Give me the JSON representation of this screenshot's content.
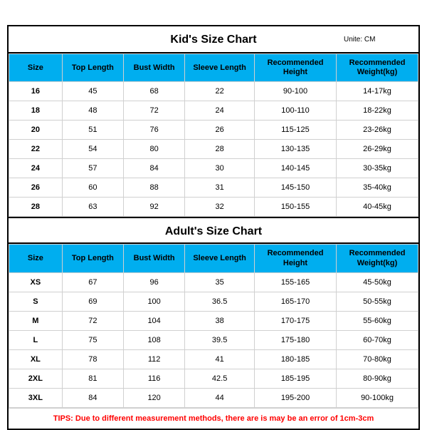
{
  "unit_label": "Unite: CM",
  "headers": [
    "Size",
    "Top Length",
    "Bust Width",
    "Sleeve Length",
    "Recommended Height",
    "Recommended Weight(kg)"
  ],
  "kids": {
    "title": "Kid's Size Chart",
    "rows": [
      [
        "16",
        "45",
        "68",
        "22",
        "90-100",
        "14-17kg"
      ],
      [
        "18",
        "48",
        "72",
        "24",
        "100-110",
        "18-22kg"
      ],
      [
        "20",
        "51",
        "76",
        "26",
        "115-125",
        "23-26kg"
      ],
      [
        "22",
        "54",
        "80",
        "28",
        "130-135",
        "26-29kg"
      ],
      [
        "24",
        "57",
        "84",
        "30",
        "140-145",
        "30-35kg"
      ],
      [
        "26",
        "60",
        "88",
        "31",
        "145-150",
        "35-40kg"
      ],
      [
        "28",
        "63",
        "92",
        "32",
        "150-155",
        "40-45kg"
      ]
    ]
  },
  "adults": {
    "title": "Adult's Size Chart",
    "rows": [
      [
        "XS",
        "67",
        "96",
        "35",
        "155-165",
        "45-50kg"
      ],
      [
        "S",
        "69",
        "100",
        "36.5",
        "165-170",
        "50-55kg"
      ],
      [
        "M",
        "72",
        "104",
        "38",
        "170-175",
        "55-60kg"
      ],
      [
        "L",
        "75",
        "108",
        "39.5",
        "175-180",
        "60-70kg"
      ],
      [
        "XL",
        "78",
        "112",
        "41",
        "180-185",
        "70-80kg"
      ],
      [
        "2XL",
        "81",
        "116",
        "42.5",
        "185-195",
        "80-90kg"
      ],
      [
        "3XL",
        "84",
        "120",
        "44",
        "195-200",
        "90-100kg"
      ]
    ]
  },
  "tips": "TIPS: Due to different measurement methods, there are is may be an error of 1cm-3cm",
  "colors": {
    "header_bg": "#00aeef",
    "border": "#d0d0d0",
    "outer_border": "#000000",
    "tips_color": "#ff0000"
  }
}
